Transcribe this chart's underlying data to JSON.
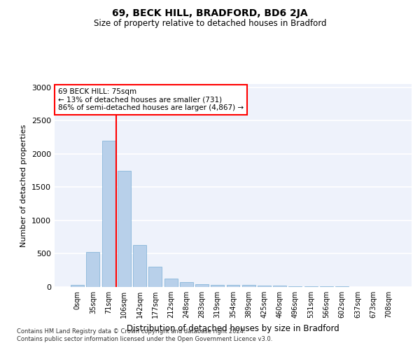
{
  "title1": "69, BECK HILL, BRADFORD, BD6 2JA",
  "title2": "Size of property relative to detached houses in Bradford",
  "xlabel": "Distribution of detached houses by size in Bradford",
  "ylabel": "Number of detached properties",
  "categories": [
    "0sqm",
    "35sqm",
    "71sqm",
    "106sqm",
    "142sqm",
    "177sqm",
    "212sqm",
    "248sqm",
    "283sqm",
    "319sqm",
    "354sqm",
    "389sqm",
    "425sqm",
    "460sqm",
    "496sqm",
    "531sqm",
    "566sqm",
    "602sqm",
    "637sqm",
    "673sqm",
    "708sqm"
  ],
  "values": [
    30,
    525,
    2200,
    1750,
    635,
    300,
    130,
    70,
    40,
    35,
    35,
    35,
    25,
    20,
    15,
    15,
    10,
    10,
    5,
    5,
    5
  ],
  "bar_color": "#b8d0ea",
  "bar_edgecolor": "#7aafd4",
  "bar_linewidth": 0.5,
  "redline_x": 2.5,
  "annotation_text": "69 BECK HILL: 75sqm\n← 13% of detached houses are smaller (731)\n86% of semi-detached houses are larger (4,867) →",
  "annotation_box_facecolor": "white",
  "annotation_box_edgecolor": "red",
  "ylim": [
    0,
    3050
  ],
  "yticks": [
    0,
    500,
    1000,
    1500,
    2000,
    2500,
    3000
  ],
  "background_color": "#eef2fb",
  "grid_color": "white",
  "footer1": "Contains HM Land Registry data © Crown copyright and database right 2024.",
  "footer2": "Contains public sector information licensed under the Open Government Licence v3.0."
}
